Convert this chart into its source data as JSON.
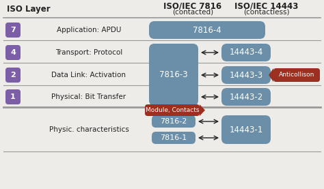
{
  "title_left": "ISO/IEC 7816",
  "title_left_sub": "(contacted)",
  "title_right": "ISO/IEC 14443",
  "title_right_sub": "(contactless)",
  "col_header": "ISO Layer",
  "bg_color": "#eeece8",
  "box_color": "#6b8fa8",
  "purple_color": "#7b5ea7",
  "red_color": "#9b3020",
  "text_white": "#ffffff",
  "text_dark": "#222222",
  "line_color": "#999999",
  "rows": [
    {
      "layer": "7",
      "label": "Application: APDU",
      "left_label": "7816-4",
      "right_label": null,
      "span": false
    },
    {
      "layer": "4",
      "label": "Transport: Protocol",
      "left_label": "7816-3",
      "right_label": "14443-4",
      "span": true
    },
    {
      "layer": "2",
      "label": "Data Link: Activation",
      "left_label": "7816-3",
      "right_label": "14443-3",
      "span": true,
      "tag": "Anticollison"
    },
    {
      "layer": "1",
      "label": "Physical: Bit Transfer",
      "left_label": "7816-3",
      "right_label": "14443-2",
      "span": true
    }
  ],
  "bottom_tag": "Module, Contacts",
  "bottom_label": "Physic. characteristics",
  "bottom_left1": "7816-2",
  "bottom_left2": "7816-1",
  "bottom_right": "14443-1"
}
